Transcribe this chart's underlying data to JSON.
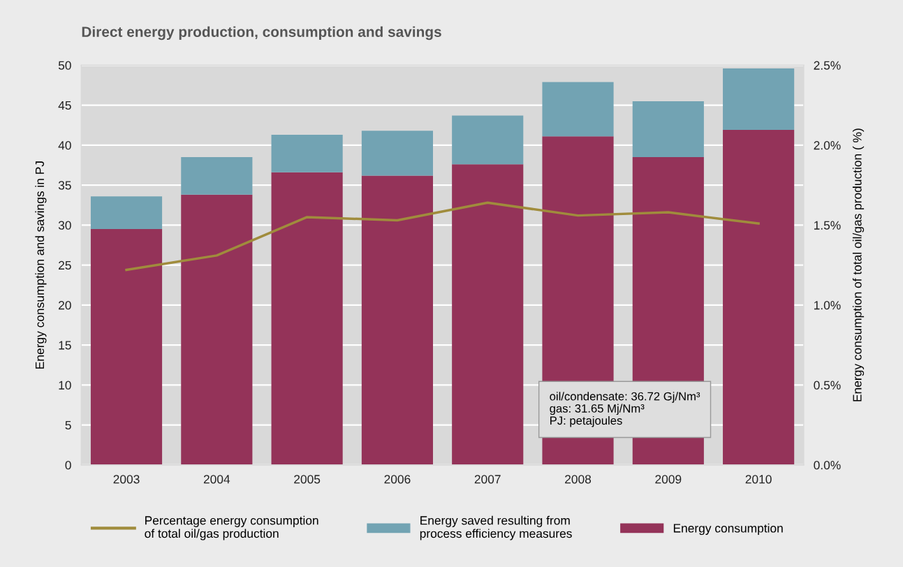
{
  "chart_data": {
    "type": "bar",
    "title": "Direct energy production, consumption and savings",
    "ylabel": "Energy consumption and savings in PJ",
    "y2label": "Energy consumption of total oil/gas production ( %)",
    "categories": [
      "2003",
      "2004",
      "2005",
      "2006",
      "2007",
      "2008",
      "2009",
      "2010"
    ],
    "stacked": true,
    "series": [
      {
        "name": "Energy consumption",
        "color": "#943359",
        "values": [
          29.5,
          33.8,
          36.6,
          36.2,
          37.6,
          41.1,
          38.5,
          41.9
        ]
      },
      {
        "name": "Energy saved resulting from\nprocess efficiency measures",
        "color": "#72a3b3",
        "values": [
          4.1,
          4.7,
          4.7,
          5.6,
          6.1,
          6.8,
          7.0,
          7.7
        ]
      },
      {
        "name": "Percentage energy consumption\nof total oil/gas production",
        "type": "line",
        "axis": "y2",
        "color": "#a08c3c",
        "values": [
          1.22,
          1.31,
          1.55,
          1.53,
          1.64,
          1.56,
          1.58,
          1.51
        ]
      }
    ],
    "ylim": [
      0,
      50
    ],
    "yticks": [
      0,
      5,
      10,
      15,
      20,
      25,
      30,
      35,
      40,
      45,
      50
    ],
    "y2lim": [
      0,
      2.5
    ],
    "y2ticks": [
      {
        "value": 0,
        "label": "0.0%"
      },
      {
        "value": 0.5,
        "label": "0.5%"
      },
      {
        "value": 1,
        "label": "1.0%"
      },
      {
        "value": 1.5,
        "label": "1.5%"
      },
      {
        "value": 2,
        "label": "2.0%"
      },
      {
        "value": 2.5,
        "label": "2.5%"
      }
    ],
    "grid": "y",
    "legend": "bottom",
    "marker": "none",
    "line_style": "solid",
    "annotations": [
      "oil/condensate: 36.72 Gj/Nm³\ngas: 31.65 Mj/Nm³\nPJ: petajoules"
    ]
  }
}
